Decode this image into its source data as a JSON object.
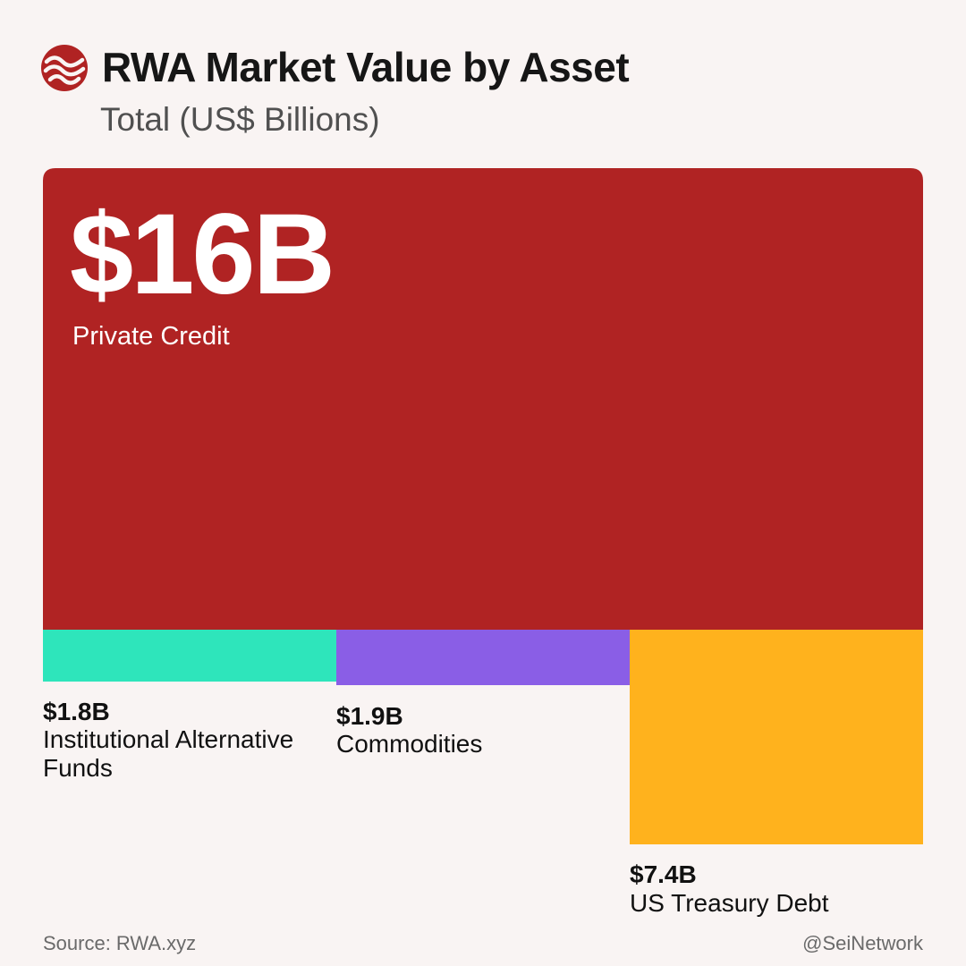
{
  "header": {
    "title": "RWA Market Value by Asset",
    "subtitle": "Total (US$ Billions)",
    "logo_icon": "sei-wave-logo-icon"
  },
  "colors": {
    "private_credit": "#b02323",
    "institutional_alternative_funds": "#2ee5bb",
    "commodities": "#8a5ee6",
    "us_treasury_debt": "#ffb21d",
    "background": "#f9f4f3"
  },
  "chart_data": {
    "type": "treemap",
    "title": "RWA Market Value by Asset",
    "subtitle": "Total (US$ Billions)",
    "unit": "US$ Billions",
    "items": [
      {
        "name": "Private Credit",
        "value": 16,
        "label": "$16B"
      },
      {
        "name": "Institutional Alternative Funds",
        "value": 1.8,
        "label": "$1.8B"
      },
      {
        "name": "Commodities",
        "value": 1.9,
        "label": "$1.9B"
      },
      {
        "name": "US Treasury Debt",
        "value": 7.4,
        "label": "$7.4B"
      }
    ]
  },
  "footer": {
    "source": "Source: RWA.xyz",
    "handle": "@SeiNetwork"
  }
}
